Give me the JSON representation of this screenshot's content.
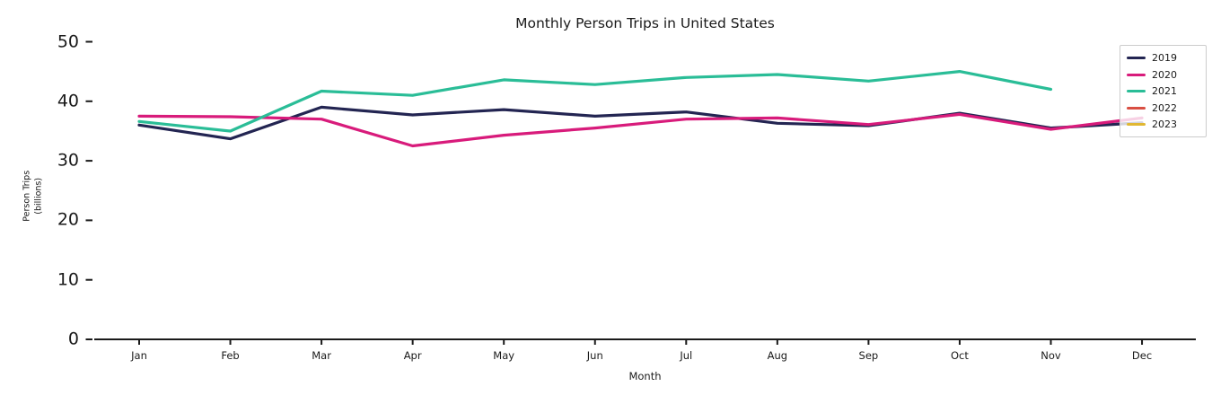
{
  "chart_data": {
    "type": "line",
    "title": "Monthly Person Trips in United States",
    "xlabel": "Month",
    "ylabel": "Person Trips",
    "ylabel_sub": "(billions)",
    "categories": [
      "Jan",
      "Feb",
      "Mar",
      "Apr",
      "May",
      "Jun",
      "Jul",
      "Aug",
      "Sep",
      "Oct",
      "Nov",
      "Dec"
    ],
    "yticks": [
      0,
      10,
      20,
      30,
      40,
      50
    ],
    "ylim": [
      0,
      50
    ],
    "grid": false,
    "legend_position": "upper right",
    "axis_color": "#1a1a1a",
    "series": [
      {
        "name": "2019",
        "color": "#232552",
        "values": [
          36.0,
          33.7,
          39.0,
          37.7,
          38.6,
          37.5,
          38.2,
          36.3,
          35.9,
          38.0,
          35.5,
          36.4
        ]
      },
      {
        "name": "2020",
        "color": "#d81b7b",
        "values": [
          37.5,
          37.4,
          37.0,
          32.5,
          34.3,
          35.5,
          37.0,
          37.2,
          36.1,
          37.8,
          35.3,
          37.2
        ]
      },
      {
        "name": "2021",
        "color": "#2abd97",
        "values": [
          36.6,
          35.0,
          41.7,
          41.0,
          43.6,
          42.8,
          44.0,
          44.5,
          43.4,
          45.0,
          42.0,
          null
        ]
      },
      {
        "name": "2022",
        "color": "#d94f43",
        "values": [
          null,
          null,
          null,
          null,
          null,
          null,
          null,
          null,
          null,
          null,
          null,
          null
        ]
      },
      {
        "name": "2023",
        "color": "#e0b732",
        "values": [
          null,
          null,
          null,
          null,
          null,
          null,
          null,
          null,
          null,
          null,
          null,
          null
        ]
      }
    ]
  }
}
